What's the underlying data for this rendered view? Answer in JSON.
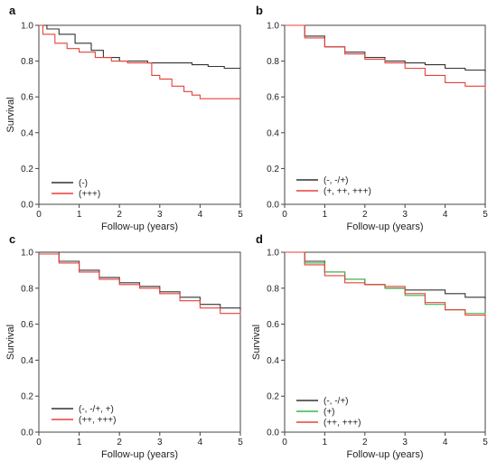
{
  "chart_data": [
    {
      "type": "line",
      "panel": "a",
      "xlabel": "Follow-up (years)",
      "ylabel": "Survival",
      "xlim": [
        0,
        5
      ],
      "ylim": [
        0,
        1
      ],
      "xticks": [
        "0",
        "1",
        "2",
        "3",
        "4",
        "5"
      ],
      "yticks": [
        "0.0",
        "0.2",
        "0.4",
        "0.6",
        "0.8",
        "1.0"
      ],
      "grid": false,
      "legend": "bottom-left",
      "series": [
        {
          "name": "(-)",
          "color": "#333333",
          "x": [
            0,
            0.2,
            0.5,
            0.9,
            1.3,
            1.6,
            2.0,
            2.7,
            3.3,
            3.8,
            4.2,
            4.6,
            5.0
          ],
          "y": [
            1.0,
            0.98,
            0.95,
            0.9,
            0.86,
            0.82,
            0.8,
            0.79,
            0.79,
            0.78,
            0.77,
            0.76,
            0.76
          ]
        },
        {
          "name": "(+++)",
          "color": "#e8403a",
          "x": [
            0,
            0.1,
            0.4,
            0.7,
            1.0,
            1.4,
            1.8,
            2.2,
            2.7,
            2.8,
            3.0,
            3.3,
            3.6,
            3.8,
            4.0,
            5.0
          ],
          "y": [
            1.0,
            0.95,
            0.9,
            0.87,
            0.85,
            0.82,
            0.8,
            0.79,
            0.79,
            0.72,
            0.7,
            0.66,
            0.63,
            0.61,
            0.59,
            0.59
          ]
        }
      ]
    },
    {
      "type": "line",
      "panel": "b",
      "xlabel": "Follow-up (years)",
      "ylabel": "",
      "xlim": [
        0,
        5
      ],
      "ylim": [
        0,
        1
      ],
      "xticks": [
        "0",
        "1",
        "2",
        "3",
        "4",
        "5"
      ],
      "yticks": [
        "0.0",
        "0.2",
        "0.4",
        "0.6",
        "0.8",
        "1.0"
      ],
      "grid": false,
      "legend": "bottom-left",
      "series": [
        {
          "name": "(-, -/+)",
          "color": "#333333",
          "x": [
            0,
            0.5,
            1.0,
            1.5,
            2.0,
            2.5,
            3.0,
            3.5,
            4.0,
            4.5,
            5.0
          ],
          "y": [
            1.0,
            0.94,
            0.88,
            0.85,
            0.82,
            0.8,
            0.79,
            0.78,
            0.76,
            0.75,
            0.74
          ]
        },
        {
          "name": "(+, ++, +++)",
          "color": "#e8403a",
          "x": [
            0,
            0.5,
            1.0,
            1.5,
            2.0,
            2.5,
            3.0,
            3.5,
            4.0,
            4.5,
            5.0
          ],
          "y": [
            1.0,
            0.93,
            0.88,
            0.84,
            0.81,
            0.79,
            0.76,
            0.72,
            0.68,
            0.66,
            0.64
          ]
        }
      ]
    },
    {
      "type": "line",
      "panel": "c",
      "xlabel": "Follow-up (years)",
      "ylabel": "Survival",
      "xlim": [
        0,
        5
      ],
      "ylim": [
        0,
        1
      ],
      "xticks": [
        "0",
        "1",
        "2",
        "3",
        "4",
        "5"
      ],
      "yticks": [
        "0.0",
        "0.2",
        "0.4",
        "0.6",
        "0.8",
        "1.0"
      ],
      "grid": false,
      "legend": "bottom-left",
      "series": [
        {
          "name": "(-, -/+, +)",
          "color": "#333333",
          "x": [
            0,
            0.5,
            1.0,
            1.5,
            2.0,
            2.5,
            3.0,
            3.5,
            4.0,
            4.5,
            5.0
          ],
          "y": [
            1.0,
            0.95,
            0.9,
            0.86,
            0.83,
            0.81,
            0.78,
            0.75,
            0.71,
            0.69,
            0.68
          ]
        },
        {
          "name": "(++, +++)",
          "color": "#e8403a",
          "x": [
            0,
            0.5,
            1.0,
            1.5,
            2.0,
            2.5,
            3.0,
            3.5,
            4.0,
            4.5,
            5.0
          ],
          "y": [
            0.99,
            0.94,
            0.89,
            0.85,
            0.82,
            0.8,
            0.77,
            0.73,
            0.69,
            0.66,
            0.65
          ]
        }
      ]
    },
    {
      "type": "line",
      "panel": "d",
      "xlabel": "Follow-up (years)",
      "ylabel": "Survival",
      "xlim": [
        0,
        5
      ],
      "ylim": [
        0,
        1
      ],
      "xticks": [
        "0",
        "1",
        "2",
        "3",
        "4",
        "5"
      ],
      "yticks": [
        "0.0",
        "0.2",
        "0.4",
        "0.6",
        "0.8",
        "1.0"
      ],
      "grid": false,
      "legend": "bottom-left",
      "series": [
        {
          "name": "(-, -/+)",
          "color": "#333333",
          "x": [
            0,
            0.5,
            1.0,
            1.5,
            2.0,
            2.5,
            3.0,
            3.5,
            4.0,
            4.5,
            5.0
          ],
          "y": [
            1.0,
            0.95,
            0.89,
            0.85,
            0.82,
            0.8,
            0.79,
            0.79,
            0.77,
            0.75,
            0.74
          ]
        },
        {
          "name": "(+)",
          "color": "#3cb84a",
          "x": [
            0,
            0.5,
            1.0,
            1.5,
            2.0,
            2.5,
            3.0,
            3.5,
            4.0,
            4.5,
            5.0
          ],
          "y": [
            1.0,
            0.94,
            0.89,
            0.85,
            0.82,
            0.8,
            0.76,
            0.71,
            0.68,
            0.66,
            0.65
          ]
        },
        {
          "name": "(++, +++)",
          "color": "#e8403a",
          "x": [
            0,
            0.5,
            1.0,
            1.5,
            2.0,
            2.5,
            3.0,
            3.5,
            4.0,
            4.5,
            5.0
          ],
          "y": [
            1.0,
            0.93,
            0.87,
            0.83,
            0.82,
            0.81,
            0.77,
            0.72,
            0.68,
            0.65,
            0.63
          ]
        }
      ]
    }
  ]
}
